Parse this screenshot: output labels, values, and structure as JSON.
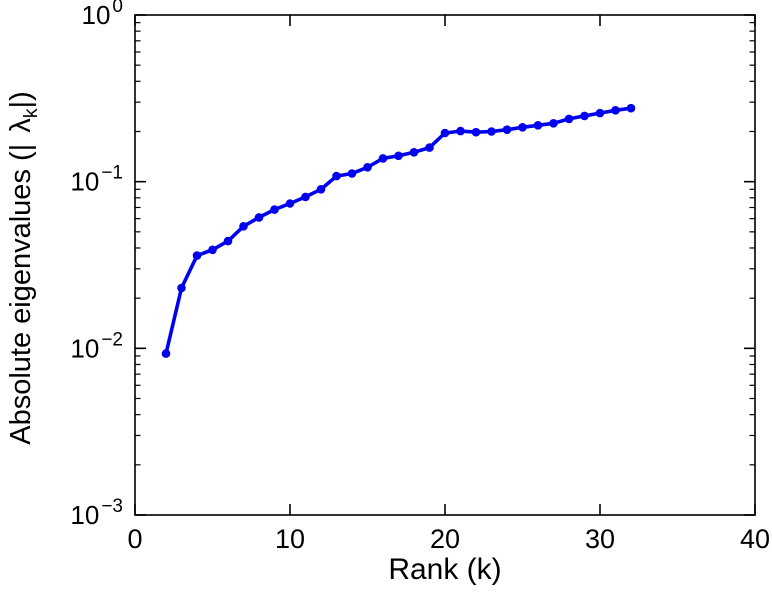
{
  "figure": {
    "background": "#ffffff",
    "axis_color": "#000000"
  },
  "labels": {
    "xlabel": "Rank (k)",
    "ylabel_prefix": "Absolute eigenvalues (|",
    "lambda": "λ",
    "lambda_subscript": "k",
    "ylabel_suffix": "|)"
  },
  "chart_data": {
    "type": "line",
    "title": "",
    "xlabel": "Rank (k)",
    "ylabel": "Absolute eigenvalues (|λ_k|)",
    "x_scale": "linear",
    "y_scale": "log10",
    "xlim": [
      0,
      40
    ],
    "ylim": [
      0.001,
      1
    ],
    "x_ticks": [
      0,
      10,
      20,
      30,
      40
    ],
    "y_tick_exponents": [
      0,
      -1,
      -2,
      -3
    ],
    "grid": false,
    "legend": null,
    "series": [
      {
        "name": "absolute-eigenvalues",
        "color": "#0000ee",
        "marker": "circle",
        "x": [
          2,
          3,
          4,
          5,
          6,
          7,
          8,
          9,
          10,
          11,
          12,
          13,
          14,
          15,
          16,
          17,
          18,
          19,
          20,
          21,
          22,
          23,
          24,
          25,
          26,
          27,
          28,
          29,
          30,
          31,
          32
        ],
        "y": [
          0.0093,
          0.023,
          0.036,
          0.039,
          0.044,
          0.054,
          0.061,
          0.068,
          0.074,
          0.081,
          0.09,
          0.108,
          0.112,
          0.122,
          0.138,
          0.143,
          0.15,
          0.16,
          0.196,
          0.201,
          0.198,
          0.2,
          0.205,
          0.212,
          0.218,
          0.224,
          0.238,
          0.248,
          0.258,
          0.268,
          0.276
        ]
      }
    ]
  }
}
